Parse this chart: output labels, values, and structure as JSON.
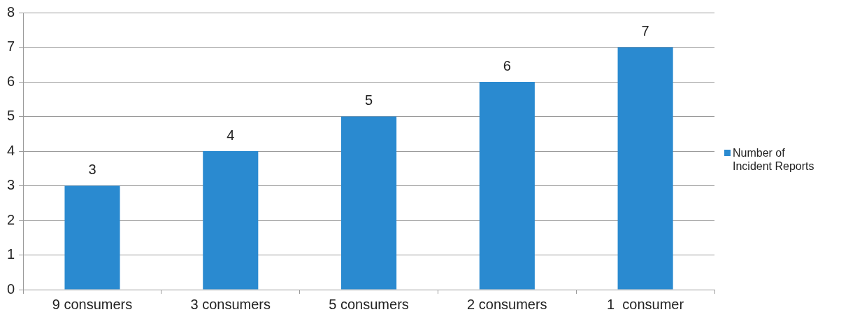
{
  "chart_data": {
    "type": "bar",
    "categories": [
      "9 consumers",
      "3 consumers",
      "5 consumers",
      "2 consumers",
      "1  consumer"
    ],
    "series": [
      {
        "name": "Number of Incident Reports",
        "color": "#2a8ad0",
        "values": [
          3,
          4,
          5,
          6,
          7
        ]
      }
    ],
    "ylim": [
      0,
      8
    ],
    "yticks": [
      0,
      1,
      2,
      3,
      4,
      5,
      6,
      7,
      8
    ],
    "grid": "y",
    "legend": "right",
    "data_labels": true
  }
}
